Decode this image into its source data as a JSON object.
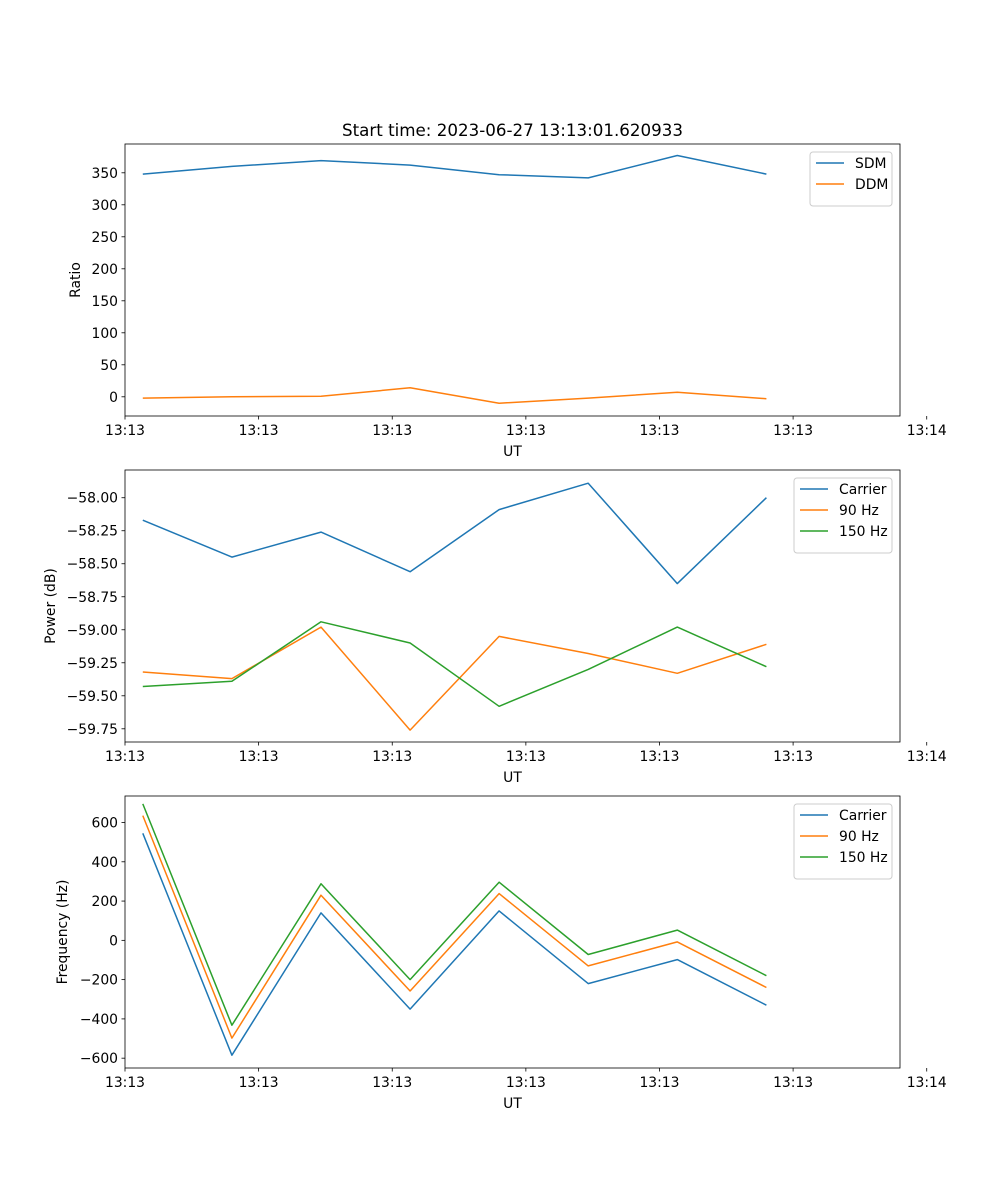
{
  "figure": {
    "title": "Start time: 2023-06-27 13:13:01.620933"
  },
  "chart_data": [
    {
      "type": "line",
      "title": "Start time: 2023-06-27 13:13:01.620933",
      "xlabel": "UT",
      "ylabel": "Ratio",
      "x": [
        1,
        2,
        3,
        4,
        5,
        6,
        7,
        8
      ],
      "xlim": [
        0.8,
        9.5
      ],
      "xticks": [
        {
          "v": 0.8,
          "label": "13:13"
        },
        {
          "v": 2.3,
          "label": "13:13"
        },
        {
          "v": 3.8,
          "label": "13:13"
        },
        {
          "v": 5.3,
          "label": "13:13"
        },
        {
          "v": 6.8,
          "label": "13:13"
        },
        {
          "v": 8.3,
          "label": "13:13"
        },
        {
          "v": 9.8,
          "label": "13:14"
        }
      ],
      "ylim": [
        -30,
        395
      ],
      "yticks": [
        0,
        50,
        100,
        150,
        200,
        250,
        300,
        350
      ],
      "series": [
        {
          "name": "SDM",
          "color": "#1f77b4",
          "values": [
            348,
            360,
            369,
            362,
            347,
            342,
            377,
            348
          ]
        },
        {
          "name": "DDM",
          "color": "#ff7f0e",
          "values": [
            -2,
            0,
            1,
            14,
            -10,
            -2,
            7,
            -3
          ]
        }
      ],
      "legend": "top-right",
      "grid": false
    },
    {
      "type": "line",
      "title": "",
      "xlabel": "UT",
      "ylabel": "Power (dB)",
      "x": [
        1,
        2,
        3,
        4,
        5,
        6,
        7,
        8
      ],
      "xlim": [
        0.8,
        9.5
      ],
      "xticks": [
        {
          "v": 0.8,
          "label": "13:13"
        },
        {
          "v": 2.3,
          "label": "13:13"
        },
        {
          "v": 3.8,
          "label": "13:13"
        },
        {
          "v": 5.3,
          "label": "13:13"
        },
        {
          "v": 6.8,
          "label": "13:13"
        },
        {
          "v": 8.3,
          "label": "13:13"
        },
        {
          "v": 9.8,
          "label": "13:14"
        }
      ],
      "ylim": [
        -59.85,
        -57.79
      ],
      "yticks": [
        -59.75,
        -59.5,
        -59.25,
        -59.0,
        -58.75,
        -58.5,
        -58.25,
        -58.0
      ],
      "ytick_labels": [
        "−59.75",
        "−59.50",
        "−59.25",
        "−59.00",
        "−58.75",
        "−58.50",
        "−58.25",
        "−58.00"
      ],
      "series": [
        {
          "name": "Carrier",
          "color": "#1f77b4",
          "values": [
            -58.17,
            -58.45,
            -58.26,
            -58.56,
            -58.09,
            -57.89,
            -58.65,
            -58.0
          ]
        },
        {
          "name": "90 Hz",
          "color": "#ff7f0e",
          "values": [
            -59.32,
            -59.37,
            -58.98,
            -59.76,
            -59.05,
            -59.18,
            -59.33,
            -59.11
          ]
        },
        {
          "name": "150 Hz",
          "color": "#2ca02c",
          "values": [
            -59.43,
            -59.39,
            -58.94,
            -59.1,
            -59.58,
            -59.3,
            -58.98,
            -59.28
          ]
        }
      ],
      "legend": "top-right",
      "grid": false
    },
    {
      "type": "line",
      "title": "",
      "xlabel": "UT",
      "ylabel": "Frequency (Hz)",
      "x": [
        1,
        2,
        3,
        4,
        5,
        6,
        7,
        8
      ],
      "xlim": [
        0.8,
        9.5
      ],
      "xticks": [
        {
          "v": 0.8,
          "label": "13:13"
        },
        {
          "v": 2.3,
          "label": "13:13"
        },
        {
          "v": 3.8,
          "label": "13:13"
        },
        {
          "v": 5.3,
          "label": "13:13"
        },
        {
          "v": 6.8,
          "label": "13:13"
        },
        {
          "v": 8.3,
          "label": "13:13"
        },
        {
          "v": 9.8,
          "label": "13:14"
        }
      ],
      "ylim": [
        -650,
        735
      ],
      "yticks": [
        -600,
        -400,
        -200,
        0,
        200,
        400,
        600
      ],
      "ytick_labels": [
        "−600",
        "−400",
        "−200",
        "0",
        "200",
        "400",
        "600"
      ],
      "series": [
        {
          "name": "Carrier",
          "color": "#1f77b4",
          "values": [
            545,
            -585,
            140,
            -350,
            150,
            -220,
            -98,
            -330
          ]
        },
        {
          "name": "90 Hz",
          "color": "#ff7f0e",
          "values": [
            635,
            -498,
            230,
            -258,
            238,
            -130,
            -8,
            -240
          ]
        },
        {
          "name": "150 Hz",
          "color": "#2ca02c",
          "values": [
            695,
            -432,
            288,
            -200,
            296,
            -72,
            52,
            -180
          ]
        }
      ],
      "legend": "top-right",
      "grid": false
    }
  ]
}
